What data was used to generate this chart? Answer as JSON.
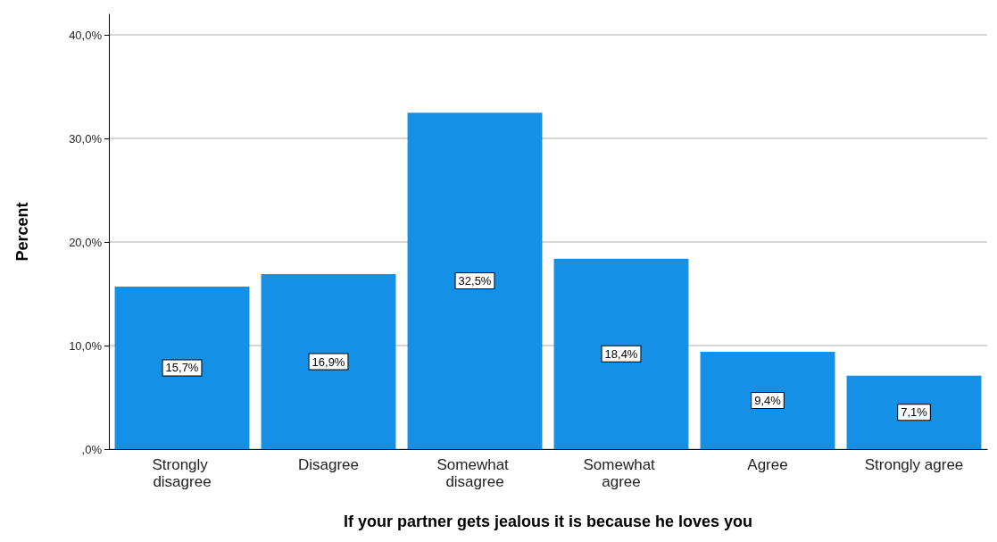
{
  "chart_data": {
    "type": "bar",
    "xlabel": "If your partner gets jealous it is because he loves you",
    "ylabel": "Percent",
    "categories": [
      "Strongly disagree",
      "Disagree",
      "Somewhat disagree",
      "Somewhat agree",
      "Agree",
      "Strongly agree"
    ],
    "values": [
      15.7,
      16.9,
      32.5,
      18.4,
      9.4,
      7.1
    ],
    "value_labels": [
      "15,7%",
      "16,9%",
      "32,5%",
      "18,4%",
      "9,4%",
      "7,1%"
    ],
    "color": "#1490e6",
    "ylim": [
      0,
      42
    ],
    "yticks": [
      {
        "value": 0,
        "label": ",0%"
      },
      {
        "value": 10,
        "label": "10,0%"
      },
      {
        "value": 20,
        "label": "20,0%"
      },
      {
        "value": 30,
        "label": "30,0%"
      },
      {
        "value": 40,
        "label": "40,0%"
      }
    ],
    "grid": "y"
  }
}
